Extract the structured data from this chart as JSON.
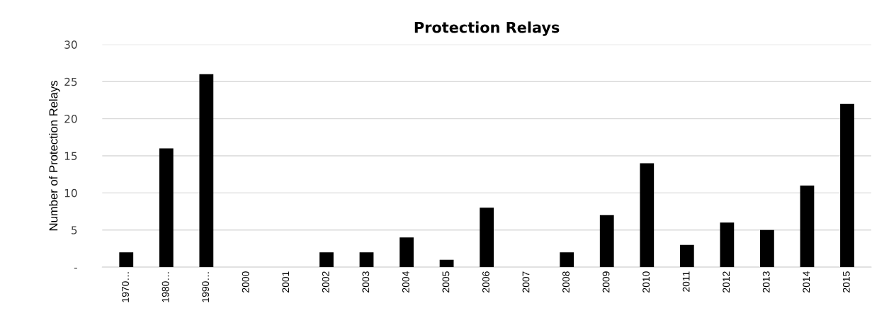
{
  "chart_data": {
    "type": "bar",
    "title": "Protection Relays",
    "ylabel": "Number of Protection Relays",
    "categories": [
      "1970…",
      "1980…",
      "1990…",
      "2000",
      "2001",
      "2002",
      "2003",
      "2004",
      "2005",
      "2006",
      "2007",
      "2008",
      "2009",
      "2010",
      "2011",
      "2012",
      "2013",
      "2014",
      "2015"
    ],
    "values": [
      2,
      16,
      26,
      0,
      0,
      2,
      2,
      4,
      1,
      8,
      0,
      2,
      7,
      14,
      3,
      6,
      5,
      11,
      22
    ],
    "color": "#000000",
    "ylim": [
      0,
      30
    ],
    "yticks": [
      {
        "value": 0,
        "label": "-"
      },
      5,
      10,
      15,
      20,
      25,
      30
    ],
    "grid": "y"
  }
}
